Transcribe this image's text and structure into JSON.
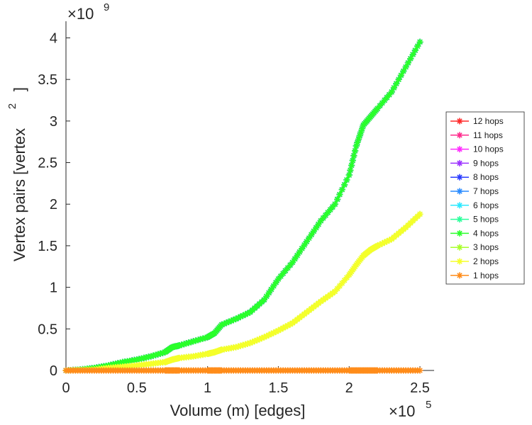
{
  "chart_data": {
    "type": "line",
    "xlabel": "Volume (m) [edges]",
    "ylabel": "Vertex pairs [vertex",
    "ylabel_superscript": "2",
    "ylabel_close": "]",
    "x_multiplier": "×10",
    "x_multiplier_exp": "5",
    "y_multiplier": "×10",
    "y_multiplier_exp": "9",
    "xlim": [
      0,
      2.6
    ],
    "ylim": [
      0,
      4.2
    ],
    "xticks": [
      0,
      0.5,
      1,
      1.5,
      2,
      2.5
    ],
    "xtick_labels": [
      "0",
      "0.5",
      "1",
      "1.5",
      "2",
      "2.5"
    ],
    "yticks": [
      0,
      0.5,
      1,
      1.5,
      2,
      2.5,
      3,
      3.5,
      4
    ],
    "ytick_labels": [
      "0",
      "0.5",
      "1",
      "1.5",
      "2",
      "2.5",
      "3",
      "3.5",
      "4"
    ],
    "legend_position": "outside-right",
    "x": [
      0.0,
      0.1,
      0.2,
      0.3,
      0.4,
      0.5,
      0.6,
      0.7,
      0.75,
      0.8,
      0.9,
      1.0,
      1.05,
      1.1,
      1.2,
      1.3,
      1.4,
      1.5,
      1.6,
      1.7,
      1.8,
      1.9,
      2.0,
      2.05,
      2.1,
      2.15,
      2.2,
      2.3,
      2.4,
      2.5
    ],
    "series": [
      {
        "name": "12 hops",
        "color": "#ff2a2a",
        "values": [
          0,
          0.01,
          0.03,
          0.06,
          0.1,
          0.13,
          0.17,
          0.22,
          0.28,
          0.3,
          0.35,
          0.4,
          0.45,
          0.55,
          0.62,
          0.7,
          0.85,
          1.1,
          1.3,
          1.55,
          1.8,
          2.0,
          2.35,
          2.7,
          2.95,
          3.05,
          3.15,
          3.35,
          3.65,
          3.95
        ]
      },
      {
        "name": "11 hops",
        "color": "#ff2a8c",
        "values": [
          0,
          0.01,
          0.03,
          0.06,
          0.1,
          0.13,
          0.17,
          0.22,
          0.28,
          0.3,
          0.35,
          0.4,
          0.45,
          0.55,
          0.62,
          0.7,
          0.85,
          1.1,
          1.3,
          1.55,
          1.8,
          2.0,
          2.35,
          2.7,
          2.95,
          3.05,
          3.15,
          3.35,
          3.65,
          3.95
        ]
      },
      {
        "name": "10 hops",
        "color": "#ff2aff",
        "values": [
          0,
          0.01,
          0.03,
          0.06,
          0.1,
          0.13,
          0.17,
          0.22,
          0.28,
          0.3,
          0.35,
          0.4,
          0.45,
          0.55,
          0.62,
          0.7,
          0.85,
          1.1,
          1.3,
          1.55,
          1.8,
          2.0,
          2.35,
          2.7,
          2.95,
          3.05,
          3.15,
          3.35,
          3.65,
          3.95
        ]
      },
      {
        "name": "9 hops",
        "color": "#9b30ff",
        "values": [
          0,
          0.01,
          0.03,
          0.06,
          0.1,
          0.13,
          0.17,
          0.22,
          0.28,
          0.3,
          0.35,
          0.4,
          0.45,
          0.55,
          0.62,
          0.7,
          0.85,
          1.1,
          1.3,
          1.55,
          1.8,
          2.0,
          2.35,
          2.7,
          2.95,
          3.05,
          3.15,
          3.35,
          3.65,
          3.95
        ]
      },
      {
        "name": "8 hops",
        "color": "#2a3cff",
        "values": [
          0,
          0.01,
          0.03,
          0.06,
          0.1,
          0.13,
          0.17,
          0.22,
          0.28,
          0.3,
          0.35,
          0.4,
          0.45,
          0.55,
          0.62,
          0.7,
          0.85,
          1.1,
          1.3,
          1.55,
          1.8,
          2.0,
          2.35,
          2.7,
          2.95,
          3.05,
          3.15,
          3.35,
          3.65,
          3.95
        ]
      },
      {
        "name": "7 hops",
        "color": "#2a8cff",
        "values": [
          0,
          0.01,
          0.03,
          0.06,
          0.1,
          0.13,
          0.17,
          0.22,
          0.28,
          0.3,
          0.35,
          0.4,
          0.45,
          0.55,
          0.62,
          0.7,
          0.85,
          1.1,
          1.3,
          1.55,
          1.8,
          2.0,
          2.35,
          2.7,
          2.95,
          3.05,
          3.15,
          3.35,
          3.65,
          3.95
        ]
      },
      {
        "name": "6 hops",
        "color": "#2ae8ff",
        "values": [
          0,
          0.01,
          0.03,
          0.06,
          0.1,
          0.13,
          0.17,
          0.22,
          0.28,
          0.3,
          0.35,
          0.4,
          0.45,
          0.55,
          0.62,
          0.7,
          0.85,
          1.1,
          1.3,
          1.55,
          1.8,
          2.0,
          2.35,
          2.7,
          2.95,
          3.05,
          3.15,
          3.35,
          3.65,
          3.95
        ]
      },
      {
        "name": "5 hops",
        "color": "#2aff9b",
        "values": [
          0,
          0.01,
          0.03,
          0.06,
          0.1,
          0.13,
          0.17,
          0.22,
          0.28,
          0.3,
          0.35,
          0.4,
          0.45,
          0.55,
          0.62,
          0.7,
          0.85,
          1.1,
          1.3,
          1.55,
          1.8,
          2.0,
          2.35,
          2.7,
          2.95,
          3.05,
          3.15,
          3.35,
          3.65,
          3.95
        ]
      },
      {
        "name": "4 hops",
        "color": "#2aff2a",
        "values": [
          0,
          0.01,
          0.03,
          0.06,
          0.1,
          0.13,
          0.17,
          0.22,
          0.28,
          0.3,
          0.35,
          0.4,
          0.45,
          0.55,
          0.62,
          0.7,
          0.85,
          1.1,
          1.3,
          1.55,
          1.8,
          2.0,
          2.35,
          2.7,
          2.95,
          3.05,
          3.15,
          3.35,
          3.65,
          3.95
        ]
      },
      {
        "name": "3 hops",
        "color": "#a8ff2a",
        "values": [
          0,
          0.005,
          0.01,
          0.03,
          0.045,
          0.06,
          0.08,
          0.1,
          0.13,
          0.15,
          0.17,
          0.2,
          0.22,
          0.25,
          0.28,
          0.33,
          0.4,
          0.48,
          0.57,
          0.7,
          0.83,
          0.95,
          1.15,
          1.27,
          1.38,
          1.45,
          1.5,
          1.58,
          1.72,
          1.88
        ]
      },
      {
        "name": "2 hops",
        "color": "#f5ff2a",
        "values": [
          0,
          0.005,
          0.01,
          0.03,
          0.045,
          0.06,
          0.08,
          0.1,
          0.13,
          0.15,
          0.17,
          0.2,
          0.22,
          0.25,
          0.28,
          0.33,
          0.4,
          0.48,
          0.57,
          0.7,
          0.83,
          0.95,
          1.15,
          1.27,
          1.38,
          1.45,
          1.5,
          1.58,
          1.72,
          1.88
        ]
      },
      {
        "name": "1 hops",
        "color": "#ff8c1a",
        "values": [
          0,
          0,
          0,
          0,
          0,
          0,
          0,
          0,
          0,
          0,
          0,
          0,
          0,
          0,
          0,
          0,
          0,
          0,
          0,
          0,
          0,
          0,
          0,
          0,
          0,
          0,
          0,
          0,
          0,
          0
        ]
      }
    ]
  }
}
